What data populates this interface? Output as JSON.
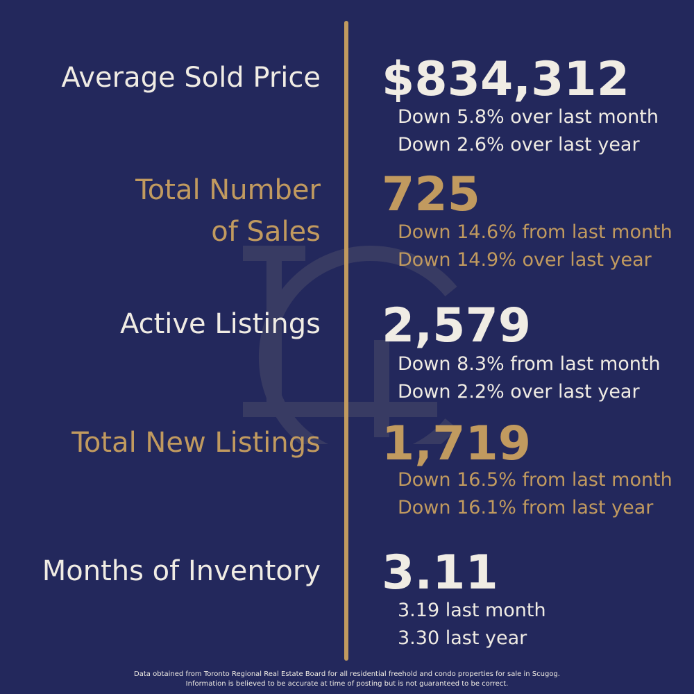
{
  "colors": {
    "background": "#23285c",
    "accent": "#c19a5f",
    "text": "#f0ece4"
  },
  "logo": {
    "monogram": "LC"
  },
  "stats": [
    {
      "label_lines": [
        "Average Sold Price"
      ],
      "value": "$834,312",
      "notes": [
        "Down 5.8% over last month",
        "Down 2.6% over last year"
      ]
    },
    {
      "label_lines": [
        "Total Number",
        "of Sales"
      ],
      "value": "725",
      "notes": [
        "Down 14.6% from last month",
        "Down 14.9% over last year"
      ]
    },
    {
      "label_lines": [
        "Active Listings"
      ],
      "value": "2,579",
      "notes": [
        "Down 8.3% from last month",
        "Down 2.2% over last year"
      ]
    },
    {
      "label_lines": [
        "Total New Listings"
      ],
      "value": "1,719",
      "notes": [
        "Down 16.5% from last month",
        "Down 16.1% from last year"
      ]
    },
    {
      "label_lines": [
        "Months of Inventory"
      ],
      "value": "3.11",
      "notes": [
        "3.19 last month",
        "3.30 last year"
      ]
    }
  ],
  "footer": {
    "line1": "Data obtained from Toronto Regional Real Estate Board for all residential freehold and condo properties for sale in Scugog.",
    "line2": "Information is believed to be accurate at time of posting but is not guaranteed to be correct."
  }
}
